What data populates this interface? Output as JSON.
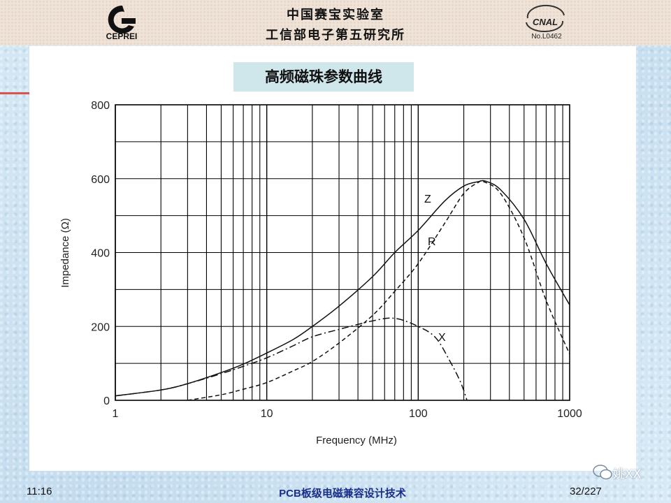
{
  "header": {
    "org_line1": "中国赛宝实验室",
    "org_line2": "工信部电子第五研究所",
    "logo_left_text": "CEPREI",
    "logo_right_text": "No.L0462",
    "logo_right_mark": "CNAL"
  },
  "slide": {
    "title": "高频磁珠参数曲线"
  },
  "footer": {
    "time": "11:16",
    "title": "PCB板级电磁兼容设计技术",
    "page": "32/227"
  },
  "watermark": {
    "text": "姚XX"
  },
  "chart_data": {
    "type": "line",
    "title": "",
    "xlabel": "Frequency (MHz)",
    "ylabel": "Impedance (Ω)",
    "xscale": "log",
    "xlim": [
      1,
      1000
    ],
    "ylim": [
      0,
      800
    ],
    "x_tick_labels": [
      "1",
      "10",
      "100",
      "1000"
    ],
    "y_tick_labels": [
      "0",
      "200",
      "400",
      "600",
      "800"
    ],
    "grid": true,
    "series": [
      {
        "name": "Z",
        "style": "solid",
        "points": [
          [
            1,
            12
          ],
          [
            2,
            28
          ],
          [
            3,
            45
          ],
          [
            5,
            75
          ],
          [
            7,
            98
          ],
          [
            10,
            128
          ],
          [
            15,
            165
          ],
          [
            20,
            200
          ],
          [
            30,
            255
          ],
          [
            50,
            335
          ],
          [
            70,
            400
          ],
          [
            100,
            460
          ],
          [
            150,
            540
          ],
          [
            200,
            580
          ],
          [
            250,
            592
          ],
          [
            280,
            593
          ],
          [
            350,
            570
          ],
          [
            500,
            490
          ],
          [
            700,
            370
          ],
          [
            1000,
            258
          ]
        ]
      },
      {
        "name": "R",
        "style": "dashed",
        "points": [
          [
            3,
            0
          ],
          [
            5,
            15
          ],
          [
            7,
            30
          ],
          [
            10,
            48
          ],
          [
            15,
            80
          ],
          [
            20,
            105
          ],
          [
            30,
            155
          ],
          [
            50,
            230
          ],
          [
            70,
            295
          ],
          [
            100,
            370
          ],
          [
            150,
            480
          ],
          [
            200,
            560
          ],
          [
            250,
            590
          ],
          [
            270,
            592
          ],
          [
            350,
            560
          ],
          [
            500,
            440
          ],
          [
            700,
            270
          ],
          [
            1000,
            125
          ]
        ]
      },
      {
        "name": "X",
        "style": "dashdot",
        "points": [
          [
            1,
            12
          ],
          [
            2,
            28
          ],
          [
            3,
            45
          ],
          [
            5,
            72
          ],
          [
            7,
            92
          ],
          [
            10,
            115
          ],
          [
            15,
            148
          ],
          [
            20,
            172
          ],
          [
            30,
            192
          ],
          [
            50,
            215
          ],
          [
            70,
            222
          ],
          [
            100,
            200
          ],
          [
            130,
            170
          ],
          [
            160,
            110
          ],
          [
            190,
            50
          ],
          [
            210,
            0
          ]
        ]
      }
    ]
  }
}
